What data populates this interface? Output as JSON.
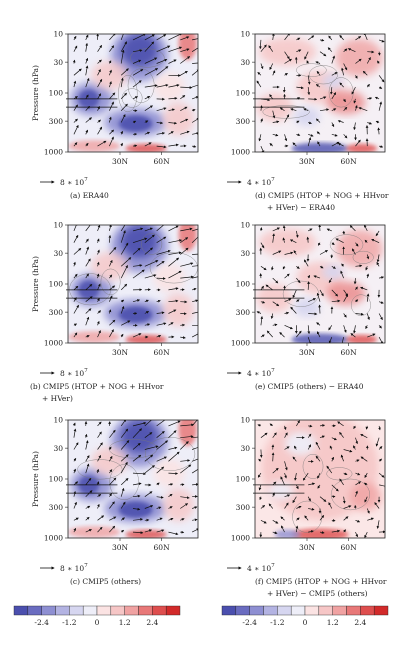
{
  "chart_data": {
    "type": "heatmap",
    "description": "Six latitude-pressure cross-section panels with shaded anomalies and vector arrows",
    "y_axis": {
      "label": "Pressure (hPa)",
      "ticks": [
        "10",
        "30",
        "100",
        "300",
        "1000"
      ],
      "scale": "log",
      "range": [
        1000,
        10
      ]
    },
    "x_axis": {
      "ticks": [
        "30N",
        "60N"
      ]
    },
    "colorbar_left": {
      "ticks": [
        "-2.4",
        "-1.2",
        "0",
        "1.2",
        "2.4"
      ],
      "colors": [
        "#4b4fae",
        "#6a6cc0",
        "#8e8fd2",
        "#b3b3e2",
        "#d6d6f0",
        "#eeeef8",
        "#fbe3e3",
        "#f6c6c6",
        "#f0a2a2",
        "#e87878",
        "#de4e4e",
        "#d22a2a"
      ]
    },
    "colorbar_right": {
      "ticks": [
        "-2.4",
        "-1.2",
        "0",
        "1.2",
        "2.4"
      ],
      "colors": [
        "#4b4fae",
        "#6a6cc0",
        "#8e8fd2",
        "#b3b3e2",
        "#d6d6f0",
        "#eeeef8",
        "#fbe3e3",
        "#f6c6c6",
        "#f0a2a2",
        "#e87878",
        "#de4e4e",
        "#d22a2a"
      ]
    },
    "panels": [
      {
        "id": "a",
        "caption": [
          "(a) ERA40"
        ],
        "ref_vector": "8 ∗ 10",
        "ref_exp": "7",
        "kind": "climate"
      },
      {
        "id": "d",
        "caption": [
          "(d) CMIP5 (HTOP + NOG + HHvor",
          "+ HVer) − ERA40"
        ],
        "ref_vector": "4 ∗ 10",
        "ref_exp": "7",
        "kind": "diff"
      },
      {
        "id": "b",
        "caption": [
          "(b) CMIP5 (HTOP + NOG + HHvor",
          "+ HVer)"
        ],
        "ref_vector": "8 ∗ 10",
        "ref_exp": "7",
        "kind": "climate"
      },
      {
        "id": "e",
        "caption": [
          "(e) CMIP5 (others) − ERA40"
        ],
        "ref_vector": "4 ∗ 10",
        "ref_exp": "7",
        "kind": "diff"
      },
      {
        "id": "c",
        "caption": [
          "(c) CMIP5 (others)"
        ],
        "ref_vector": "8 ∗ 10",
        "ref_exp": "7",
        "kind": "climate"
      },
      {
        "id": "f",
        "caption": [
          "(f) CMIP5 (HTOP + NOG + HHvor",
          "+ HVer) − CMIP5 (others)"
        ],
        "ref_vector": "4 ∗ 10",
        "ref_exp": "7",
        "kind": "diff2"
      }
    ]
  }
}
